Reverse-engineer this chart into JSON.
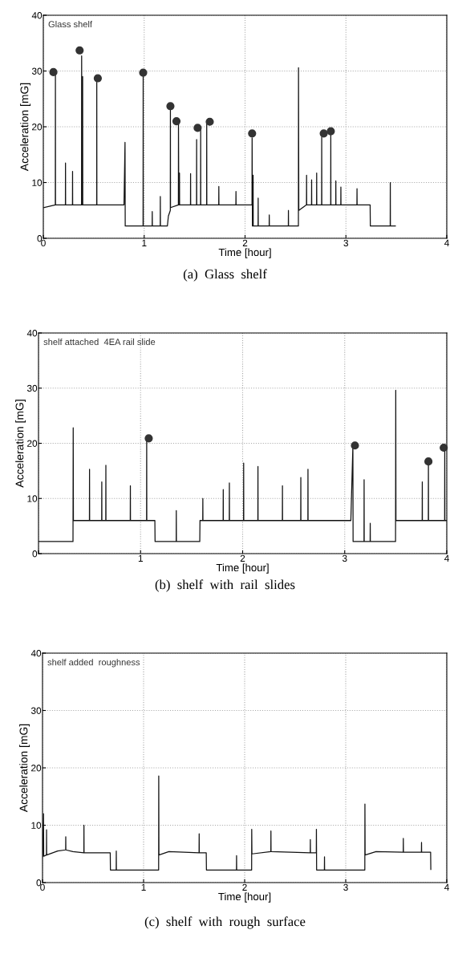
{
  "chart_data": [
    {
      "type": "line",
      "xlabel": "Time [hour]",
      "ylabel": "Acceleration [mG]",
      "annotations": [
        "Glass shelf",
        "(a)  Glass  shelf"
      ],
      "xlim": [
        0,
        4
      ],
      "ylim": [
        0,
        40
      ],
      "xticks": [
        0,
        1,
        2,
        3,
        4
      ],
      "yticks": [
        0,
        10,
        20,
        30,
        40
      ],
      "grid": true,
      "marker": "none",
      "series": [
        {
          "color": "#111111",
          "x": [
            0,
            0.119,
            0.12,
            0.121,
            0.219,
            0.22,
            0.221,
            0.289,
            0.29,
            0.291,
            0.379,
            0.38,
            0.383,
            0.389,
            0.39,
            0.391,
            0.529,
            0.53,
            0.531,
            0.8,
            0.81,
            0.812,
            0.989,
            0.99,
            0.991,
            1.079,
            1.08,
            1.081,
            1.159,
            1.16,
            1.161,
            1.23,
            1.24,
            1.259,
            1.26,
            1.261,
            1.339,
            1.34,
            1.343,
            1.349,
            1.35,
            1.351,
            1.459,
            1.46,
            1.461,
            1.519,
            1.52,
            1.521,
            1.559,
            1.56,
            1.561,
            1.619,
            1.62,
            1.621,
            1.739,
            1.74,
            1.741,
            1.909,
            1.91,
            1.911,
            2.069,
            2.07,
            2.073,
            2.079,
            2.08,
            2.081,
            2.129,
            2.13,
            2.131,
            2.239,
            2.24,
            2.241,
            2.429,
            2.43,
            2.431,
            2.529,
            2.53,
            2.533,
            2.609,
            2.61,
            2.611,
            2.659,
            2.66,
            2.661,
            2.709,
            2.71,
            2.711,
            2.759,
            2.76,
            2.761,
            2.849,
            2.85,
            2.851,
            2.899,
            2.9,
            2.901,
            2.949,
            2.95,
            2.951,
            3.109,
            3.11,
            3.111,
            3.24,
            3.242,
            3.439,
            3.44,
            3.441,
            3.49
          ],
          "values": [
            5.5,
            6,
            30,
            6,
            6,
            13.5,
            6,
            6,
            12,
            6,
            6,
            32.7,
            6,
            6,
            29,
            6,
            6,
            28,
            6,
            6,
            17.2,
            2.2,
            2.2,
            29.5,
            2.2,
            2.2,
            4.8,
            2.2,
            2.2,
            7.5,
            2.2,
            2.2,
            4,
            5,
            23.5,
            5.5,
            6,
            21,
            6,
            6,
            11.7,
            6,
            6,
            11.6,
            6,
            6,
            17.7,
            6,
            6,
            19.5,
            6,
            6,
            20.8,
            6,
            6,
            9.3,
            6,
            6,
            8.4,
            6,
            6,
            18,
            2.2,
            2.2,
            11.3,
            2.2,
            2.2,
            7.2,
            2.2,
            2.2,
            4.2,
            2.2,
            2.2,
            5,
            2.2,
            2.2,
            30.6,
            5,
            6,
            11.3,
            6,
            6,
            10.5,
            6,
            6,
            11.7,
            6,
            6,
            18.2,
            6,
            6,
            19,
            6,
            6,
            10.3,
            6,
            6,
            9.2,
            6,
            6,
            8.9,
            6,
            6,
            2.2,
            2.2,
            10,
            2.2,
            2.2
          ]
        },
        {
          "type": "scatter",
          "color": "#333333",
          "marker": "circle",
          "x": [
            0.1,
            0.36,
            0.54,
            0.99,
            1.26,
            1.32,
            1.53,
            1.65,
            2.07,
            2.78,
            2.85
          ],
          "values": [
            29.8,
            33.7,
            28.7,
            29.7,
            23.7,
            21,
            19.8,
            20.9,
            18.8,
            18.8,
            19.2
          ]
        }
      ]
    },
    {
      "type": "line",
      "xlabel": "Time [hour]",
      "ylabel": "Acceleration [mG]",
      "annotations": [
        "shelf attached  4EA rail slide",
        "(b)  shelf  with  rail  slides"
      ],
      "xlim": [
        0,
        4
      ],
      "ylim": [
        0,
        40
      ],
      "xticks": [
        {
          "value": 0,
          "label": null
        },
        1,
        2,
        3,
        4
      ],
      "yticks": [
        0,
        10,
        20,
        30,
        40
      ],
      "grid": true,
      "marker": "none",
      "series": [
        {
          "color": "#111111",
          "x": [
            0,
            0.338,
            0.34,
            0.342,
            0.499,
            0.5,
            0.501,
            0.619,
            0.62,
            0.621,
            0.659,
            0.66,
            0.661,
            0.899,
            0.9,
            0.901,
            1.059,
            1.06,
            1.061,
            1.14,
            1.142,
            1.349,
            1.35,
            1.351,
            1.58,
            1.582,
            1.609,
            1.61,
            1.611,
            1.809,
            1.81,
            1.811,
            1.869,
            1.87,
            1.871,
            2.009,
            2.01,
            2.011,
            2.149,
            2.15,
            2.151,
            2.389,
            2.39,
            2.391,
            2.569,
            2.57,
            2.571,
            2.639,
            2.64,
            2.641,
            3.06,
            3.08,
            3.082,
            3.189,
            3.19,
            3.191,
            3.249,
            3.25,
            3.251,
            3.498,
            3.5,
            3.502,
            3.759,
            3.76,
            3.761,
            3.819,
            3.82,
            3.821,
            3.979,
            3.98,
            3.981,
            4
          ],
          "values": [
            2.2,
            2.2,
            22.8,
            6,
            6,
            15.3,
            6,
            6,
            13,
            6,
            6,
            16,
            6,
            6,
            12.3,
            6,
            6,
            20.8,
            6,
            6,
            2.2,
            2.2,
            7.8,
            2.2,
            2.2,
            6,
            6,
            10,
            6,
            6,
            11.6,
            6,
            6,
            12.8,
            6,
            6,
            16.4,
            6,
            6,
            15.8,
            6,
            6,
            12.3,
            6,
            6,
            13.8,
            6,
            6,
            15.3,
            6,
            6,
            19.5,
            2.2,
            2.2,
            13.4,
            2.2,
            2.2,
            5.5,
            2.2,
            2.2,
            29.6,
            6,
            6,
            13,
            6,
            6,
            16.7,
            6,
            6,
            19,
            6,
            6
          ]
        },
        {
          "type": "scatter",
          "color": "#333333",
          "marker": "circle",
          "x": [
            1.08,
            3.1,
            3.82,
            3.97
          ],
          "values": [
            20.9,
            19.6,
            16.7,
            19.2
          ]
        }
      ]
    },
    {
      "type": "line",
      "xlabel": "Time [hour]",
      "ylabel": "Acceleration [mG]",
      "annotations": [
        "shelf added  roughness",
        "(c)  shelf  with  rough  surface"
      ],
      "xlim": [
        0,
        4
      ],
      "ylim": [
        0,
        40
      ],
      "xticks": [
        0,
        1,
        2,
        3,
        4
      ],
      "yticks": [
        0,
        10,
        20,
        30,
        40
      ],
      "grid": true,
      "marker": "none",
      "series": [
        {
          "color": "#111111",
          "x": [
            0,
            0.01,
            0.012,
            0.039,
            0.04,
            0.041,
            0.15,
            0.229,
            0.23,
            0.231,
            0.3,
            0.409,
            0.41,
            0.411,
            0.67,
            0.672,
            0.729,
            0.73,
            0.731,
            1.149,
            1.15,
            1.152,
            1.25,
            1.549,
            1.55,
            1.551,
            1.62,
            1.622,
            1.919,
            1.92,
            1.921,
            2.069,
            2.07,
            2.072,
            2.259,
            2.26,
            2.261,
            2.649,
            2.65,
            2.651,
            2.709,
            2.71,
            2.712,
            2.789,
            2.79,
            2.791,
            3.189,
            3.19,
            3.192,
            3.3,
            3.569,
            3.57,
            3.571,
            3.749,
            3.75,
            3.751,
            3.84,
            3.842
          ],
          "values": [
            4.5,
            12,
            4.6,
            4.8,
            9.2,
            4.8,
            5.5,
            5.7,
            8,
            5.7,
            5.4,
            5.2,
            10,
            5.2,
            5.2,
            2.2,
            2.2,
            5.5,
            2.2,
            2.2,
            18.6,
            4.8,
            5.4,
            5.2,
            8.5,
            5.2,
            5.2,
            2.2,
            2.2,
            4.7,
            2.2,
            2.2,
            9.3,
            5,
            5.4,
            9,
            5.4,
            5.2,
            7.5,
            5.2,
            5.2,
            9.3,
            2.2,
            2.2,
            4.5,
            2.2,
            2.2,
            13.7,
            4.8,
            5.4,
            5.3,
            7.7,
            5.3,
            5.3,
            7,
            5.3,
            5.3,
            2.3
          ]
        }
      ]
    }
  ]
}
